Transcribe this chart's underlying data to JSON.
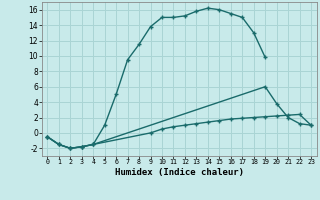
{
  "xlabel": "Humidex (Indice chaleur)",
  "bg_color": "#c8eaea",
  "line_color": "#1a6b6b",
  "grid_color": "#aad4d4",
  "xlim": [
    -0.5,
    23.5
  ],
  "ylim": [
    -3.0,
    17.0
  ],
  "xtick_vals": [
    0,
    1,
    2,
    3,
    4,
    5,
    6,
    7,
    8,
    9,
    10,
    11,
    12,
    13,
    14,
    15,
    16,
    17,
    18,
    19,
    20,
    21,
    22,
    23
  ],
  "ytick_vals": [
    -2,
    0,
    2,
    4,
    6,
    8,
    10,
    12,
    14,
    16
  ],
  "curve1_x": [
    0,
    1,
    2,
    3,
    4,
    5,
    6,
    7,
    8,
    9,
    10,
    11,
    12,
    13,
    14,
    15,
    16,
    17,
    18,
    19
  ],
  "curve1_y": [
    -0.5,
    -1.5,
    -2.0,
    -1.8,
    -1.5,
    1.0,
    5.0,
    9.5,
    11.5,
    13.8,
    15.0,
    15.0,
    15.2,
    15.8,
    16.2,
    16.0,
    15.5,
    15.0,
    13.0,
    9.8
  ],
  "curve2_x": [
    0,
    1,
    2,
    3,
    4,
    19,
    20,
    21,
    22,
    23
  ],
  "curve2_y": [
    -0.5,
    -1.5,
    -2.0,
    -1.8,
    -1.5,
    6.0,
    3.8,
    2.0,
    1.2,
    1.0
  ],
  "curve3_x": [
    0,
    1,
    2,
    3,
    4,
    9,
    10,
    11,
    12,
    13,
    14,
    15,
    16,
    17,
    18,
    19,
    20,
    21,
    22,
    23
  ],
  "curve3_y": [
    -0.5,
    -1.5,
    -2.0,
    -1.8,
    -1.5,
    0.0,
    0.5,
    0.8,
    1.0,
    1.2,
    1.4,
    1.6,
    1.8,
    1.9,
    2.0,
    2.1,
    2.2,
    2.3,
    2.4,
    1.0
  ]
}
